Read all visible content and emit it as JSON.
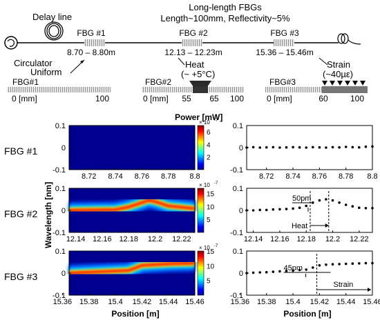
{
  "schematic": {
    "delay_line_label": "Delay line",
    "title_line1": "Long-length FBGs",
    "title_line2": "Length~100mm, Reflectivity~5%",
    "circulator_label": "Circulator",
    "fbgs": [
      {
        "label": "FBG #1",
        "range": "8.70 – 8.80m"
      },
      {
        "label": "FBG #2",
        "range": "12.13 – 12.23m"
      },
      {
        "label": "FBG #3",
        "range": "15.36 – 15.46m"
      }
    ]
  },
  "details": [
    {
      "name": "FBG#1",
      "condition": "Uniform",
      "ticks": [
        "0 [mm]",
        "100"
      ]
    },
    {
      "name": "FBG#2",
      "condition_line1": "Heat",
      "condition_line2": "(~ +5°C)",
      "ticks": [
        "0 [mm]",
        "55",
        "65",
        "100"
      ]
    },
    {
      "name": "FBG#3",
      "condition_line1": "Strain",
      "condition_line2": "(~40µε)",
      "ticks": [
        "0 [mm]",
        "60",
        "100"
      ]
    }
  ],
  "spectra": {
    "power_label": "Power [mW]",
    "ylabel": "Wavelength [nm]",
    "xlabel": "Position [m]",
    "row_labels": [
      "FBG #1",
      "FBG #2",
      "FBG #3"
    ],
    "yticks": [
      "0.1",
      "0",
      "-0.1"
    ],
    "colorbar_exponent": "× 10",
    "colorbar_power": "-7",
    "colorbars": [
      [
        "6",
        "4",
        "2"
      ],
      [
        "15",
        "10",
        "5"
      ],
      [
        "15",
        "10",
        "5"
      ]
    ],
    "xticks": [
      [
        "8.72",
        "8.74",
        "8.76",
        "8.78",
        "8.8"
      ],
      [
        "12.14",
        "12.16",
        "12.18",
        "12.2",
        "12.22"
      ],
      [
        "15.36",
        "15.38",
        "15.4",
        "15.42",
        "15.44",
        "15.46"
      ]
    ]
  },
  "shifts": {
    "xlabel": "Position [m]",
    "yticks": [
      "0.1",
      "0",
      "-0.1"
    ],
    "xticks": [
      [
        "8.72",
        "8.74",
        "8.76",
        "8.78",
        "8.8"
      ],
      [
        "12.14",
        "12.16",
        "12.18",
        "12.2",
        "12.22"
      ],
      [
        "15.36",
        "15.38",
        "15.4",
        "15.42",
        "15.44",
        "15.46"
      ]
    ],
    "annotations": [
      {
        "shift": "",
        "region": ""
      },
      {
        "shift": "50pm",
        "region": "Heat"
      },
      {
        "shift": "45pm",
        "region": "Strain"
      }
    ]
  },
  "chart_data": [
    {
      "type": "heatmap",
      "title": "FBG #1",
      "x_range": [
        8.705,
        8.8
      ],
      "y_range": [
        -0.1,
        0.1
      ],
      "colorbar_range": [
        0,
        7e-07
      ],
      "center_wavelength": [
        [
          8.705,
          0
        ],
        [
          8.8,
          0
        ]
      ]
    },
    {
      "type": "heatmap",
      "title": "FBG #2",
      "x_range": [
        12.135,
        12.23
      ],
      "y_range": [
        -0.1,
        0.1
      ],
      "colorbar_range": [
        0,
        1.7e-06
      ],
      "center_wavelength": [
        [
          12.135,
          0
        ],
        [
          12.17,
          0.003
        ],
        [
          12.18,
          0.015
        ],
        [
          12.19,
          0.035
        ],
        [
          12.195,
          0.045
        ],
        [
          12.2,
          0.04
        ],
        [
          12.21,
          0.02
        ],
        [
          12.23,
          0.008
        ]
      ]
    },
    {
      "type": "heatmap",
      "title": "FBG #3",
      "x_range": [
        15.365,
        15.46
      ],
      "y_range": [
        -0.1,
        0.1
      ],
      "colorbar_range": [
        0,
        1.5e-06
      ],
      "center_wavelength": [
        [
          15.365,
          0
        ],
        [
          15.41,
          0.012
        ],
        [
          15.42,
          0.035
        ],
        [
          15.44,
          0.042
        ],
        [
          15.46,
          0.045
        ]
      ]
    },
    {
      "type": "scatter",
      "title": "FBG #1",
      "x_range": [
        8.705,
        8.8
      ],
      "y_range": [
        -0.1,
        0.1
      ],
      "x": [
        8.705,
        8.71,
        8.715,
        8.72,
        8.725,
        8.73,
        8.735,
        8.74,
        8.745,
        8.75,
        8.755,
        8.76,
        8.765,
        8.77,
        8.775,
        8.78,
        8.785,
        8.79,
        8.795,
        8.8
      ],
      "y": [
        0,
        0.002,
        0,
        0.001,
        0.002,
        0,
        0.001,
        0.002,
        0.001,
        0,
        0.002,
        0.001,
        0,
        0.002,
        0.001,
        0.003,
        0.002,
        0.001,
        0.004,
        0.005
      ]
    },
    {
      "type": "scatter",
      "title": "FBG #2",
      "x_range": [
        12.135,
        12.23
      ],
      "y_range": [
        -0.1,
        0.1
      ],
      "x": [
        12.135,
        12.14,
        12.145,
        12.15,
        12.155,
        12.16,
        12.165,
        12.17,
        12.175,
        12.18,
        12.185,
        12.19,
        12.195,
        12.2,
        12.205,
        12.21,
        12.215,
        12.22,
        12.225,
        12.23
      ],
      "y": [
        0,
        0,
        0.002,
        0.002,
        0.004,
        0.005,
        0.006,
        0.008,
        0.012,
        0.02,
        0.035,
        0.045,
        0.05,
        0.045,
        0.035,
        0.025,
        0.018,
        0.012,
        0.01,
        0.01
      ]
    },
    {
      "type": "scatter",
      "title": "FBG #3",
      "x_range": [
        15.365,
        15.46
      ],
      "y_range": [
        -0.1,
        0.1
      ],
      "x": [
        15.365,
        15.37,
        15.375,
        15.38,
        15.385,
        15.39,
        15.395,
        15.4,
        15.405,
        15.41,
        15.415,
        15.42,
        15.425,
        15.43,
        15.435,
        15.44,
        15.445,
        15.45,
        15.455,
        15.46
      ],
      "y": [
        0,
        0.002,
        0.003,
        0.004,
        0.006,
        0.008,
        0.01,
        0.012,
        0.014,
        0.016,
        0.025,
        0.035,
        0.038,
        0.04,
        0.041,
        0.042,
        0.043,
        0.044,
        0.045,
        0.045
      ]
    }
  ]
}
